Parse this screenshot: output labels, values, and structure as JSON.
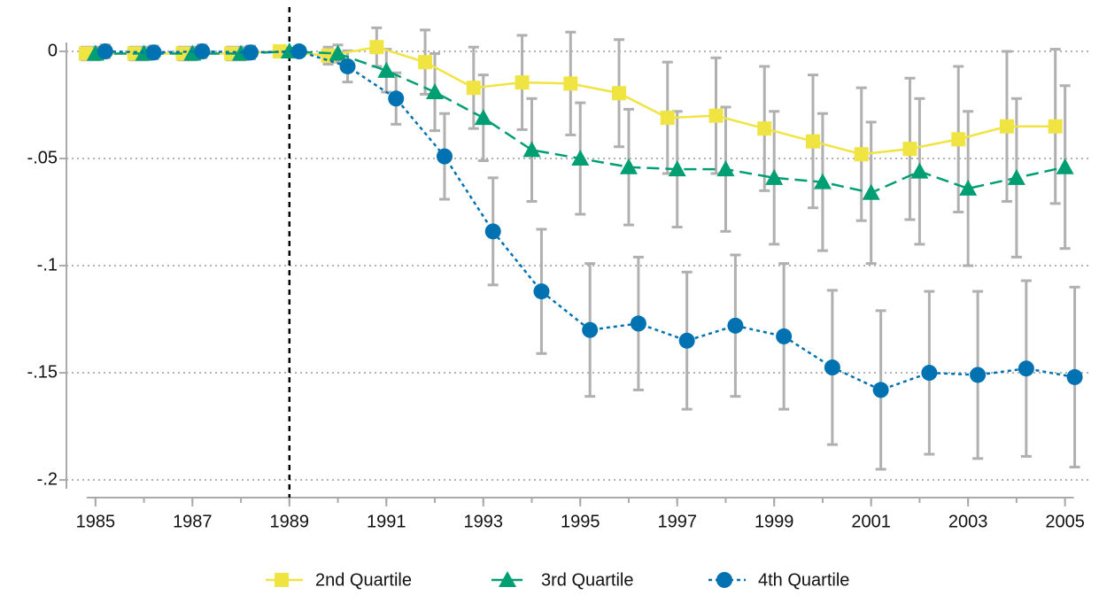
{
  "chart_data": {
    "type": "errorbar-line",
    "x": [
      1985,
      1986,
      1987,
      1988,
      1989,
      1990,
      1991,
      1992,
      1993,
      1994,
      1995,
      1996,
      1997,
      1998,
      1999,
      2000,
      2001,
      2002,
      2003,
      2004,
      2005
    ],
    "series": [
      {
        "name": "2nd Quartile",
        "color": "#f0e442",
        "marker": "square",
        "line_style": "solid",
        "values": [
          -0.001,
          -0.001,
          -0.001,
          -0.001,
          0,
          -0.002,
          0.002,
          -0.005,
          -0.017,
          -0.0145,
          -0.015,
          -0.0195,
          -0.031,
          -0.03,
          -0.036,
          -0.042,
          -0.048,
          -0.0455,
          -0.041,
          -0.035,
          -0.035
        ],
        "errors": [
          0.003,
          0.003,
          0.003,
          0.003,
          0,
          0.004,
          0.009,
          0.015,
          0.019,
          0.022,
          0.024,
          0.025,
          0.026,
          0.027,
          0.029,
          0.031,
          0.031,
          0.033,
          0.034,
          0.035,
          0.036
        ]
      },
      {
        "name": "3rd Quartile",
        "color": "#009e73",
        "marker": "triangle",
        "line_style": "dashed",
        "values": [
          -0.001,
          -0.001,
          -0.001,
          -0.001,
          0,
          -0.001,
          -0.009,
          -0.019,
          -0.031,
          -0.046,
          -0.05,
          -0.054,
          -0.055,
          -0.055,
          -0.059,
          -0.061,
          -0.066,
          -0.056,
          -0.064,
          -0.059,
          -0.054
        ],
        "errors": [
          0.003,
          0.003,
          0.003,
          0.003,
          0,
          0.004,
          0.01,
          0.018,
          0.02,
          0.024,
          0.026,
          0.027,
          0.027,
          0.029,
          0.031,
          0.032,
          0.033,
          0.034,
          0.036,
          0.037,
          0.038
        ]
      },
      {
        "name": "4th Quartile",
        "color": "#0072b2",
        "marker": "circle",
        "line_style": "dotted",
        "values": [
          0,
          -0.0005,
          0,
          -0.0005,
          0,
          -0.007,
          -0.022,
          -0.049,
          -0.084,
          -0.112,
          -0.13,
          -0.127,
          -0.135,
          -0.128,
          -0.133,
          -0.1475,
          -0.158,
          -0.15,
          -0.151,
          -0.148,
          -0.152
        ],
        "errors": [
          0.003,
          0.003,
          0.003,
          0.003,
          0,
          0.0073,
          0.012,
          0.02,
          0.025,
          0.029,
          0.031,
          0.031,
          0.032,
          0.033,
          0.034,
          0.036,
          0.037,
          0.038,
          0.039,
          0.041,
          0.042
        ]
      }
    ],
    "error_color": "#b0b0b0",
    "xlim": [
      1984.4,
      2005.5
    ],
    "xticks": [
      1985,
      1987,
      1989,
      1991,
      1993,
      1995,
      1997,
      1999,
      2001,
      2003,
      2005
    ],
    "ylim": [
      -0.207,
      0.012
    ],
    "yticks": [
      {
        "value": 0,
        "label": "0"
      },
      {
        "value": -0.05,
        "label": "-.05"
      },
      {
        "value": -0.1,
        "label": "-.1"
      },
      {
        "value": -0.15,
        "label": "-.15"
      },
      {
        "value": -0.2,
        "label": "-.2"
      }
    ],
    "grid": true,
    "reference_x": 1989,
    "legend": "bottom"
  }
}
